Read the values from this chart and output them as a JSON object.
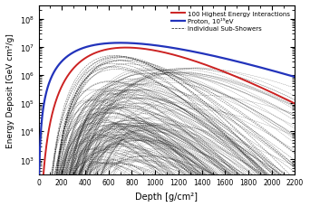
{
  "xlabel": "Depth [g/cm²]",
  "ylabel": "Energy Deposit [GeV cm²/g]",
  "xlim": [
    0,
    2200
  ],
  "ylim": [
    300.0,
    300000000.0
  ],
  "xticks": [
    0,
    200,
    400,
    600,
    800,
    1000,
    1200,
    1400,
    1600,
    1800,
    2000,
    2200
  ],
  "legend_entries": [
    {
      "label": "Proton, 10¹⁹eV",
      "color": "#2233bb",
      "lw": 1.6
    },
    {
      "label": "100 Highest Energy Interactions",
      "color": "#cc2222",
      "lw": 1.4
    },
    {
      "label": "Individual Sub-Showers",
      "color": "#111111",
      "lw": 0.5
    }
  ],
  "proton_xmax": 700,
  "proton_peak": 14000000.0,
  "proton_lam": 250,
  "red_xmax": 750,
  "red_peak": 9500000.0,
  "red_lam": 140,
  "figsize": [
    3.42,
    2.3
  ],
  "dpi": 100
}
